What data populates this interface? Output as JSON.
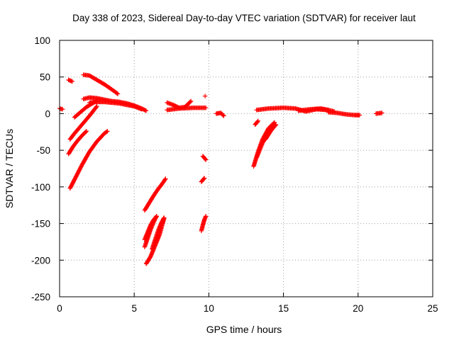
{
  "chart_data": {
    "type": "scatter",
    "title": "Day 338 of 2023, Sidereal Day-to-day VTEC variation (SDTVAR) for receiver laut",
    "xlabel": "GPS time / hours",
    "ylabel": "SDTVAR / TECUs",
    "xlim": [
      0,
      25
    ],
    "ylim": [
      -250,
      100
    ],
    "xticks": [
      "0",
      "5",
      "10",
      "15",
      "20",
      "25"
    ],
    "yticks": [
      "100",
      "50",
      "0",
      "-50",
      "-100",
      "-150",
      "-200",
      "-250"
    ],
    "grid": true,
    "marker": "plus",
    "color": "#ff0000",
    "tracks": [
      {
        "x": [
          0.0,
          0.2
        ],
        "y": [
          7,
          6
        ]
      },
      {
        "x": [
          0.6,
          0.85
        ],
        "y": [
          46,
          44
        ]
      },
      {
        "x": [
          1.6,
          2.0,
          2.5,
          3.0,
          3.5,
          3.9
        ],
        "y": [
          53,
          52,
          46,
          40,
          33,
          27
        ]
      },
      {
        "x": [
          1.6,
          2.0,
          2.5,
          3.0,
          3.5,
          4.0,
          4.5,
          5.0,
          5.5,
          5.8
        ],
        "y": [
          20,
          22,
          21,
          19,
          17,
          16,
          14,
          11,
          7,
          4
        ]
      },
      {
        "x": [
          2.0,
          2.5,
          3.0,
          3.5,
          4.0,
          4.5,
          5.0,
          5.5
        ],
        "y": [
          15,
          16,
          16,
          15,
          14,
          12,
          10,
          6
        ]
      },
      {
        "x": [
          0.7,
          1.0,
          1.5,
          2.0,
          2.5
        ],
        "y": [
          -35,
          -27,
          -15,
          -3,
          10
        ]
      },
      {
        "x": [
          1.0,
          1.4,
          1.8,
          2.2,
          2.5
        ],
        "y": [
          -5,
          2,
          9,
          14,
          18
        ]
      },
      {
        "x": [
          0.6,
          0.9,
          1.2,
          1.5,
          1.8
        ],
        "y": [
          -55,
          -45,
          -37,
          -30,
          -24
        ]
      },
      {
        "x": [
          0.7,
          1.0,
          1.5,
          2.0,
          2.5,
          3.0,
          3.2
        ],
        "y": [
          -102,
          -90,
          -70,
          -52,
          -38,
          -27,
          -24
        ]
      },
      {
        "x": [
          5.7,
          6.0,
          6.3,
          6.6,
          6.9,
          7.1
        ],
        "y": [
          -132,
          -122,
          -112,
          -103,
          -95,
          -89
        ]
      },
      {
        "x": [
          5.7,
          5.9,
          6.1,
          6.3,
          6.5
        ],
        "y": [
          -182,
          -170,
          -158,
          -148,
          -140
        ]
      },
      {
        "x": [
          5.7,
          5.9,
          6.1,
          6.3,
          6.5
        ],
        "y": [
          -172,
          -162,
          -152,
          -145,
          -140
        ]
      },
      {
        "x": [
          5.8,
          6.1,
          6.4,
          6.7,
          6.9,
          7.0
        ],
        "y": [
          -205,
          -195,
          -180,
          -165,
          -150,
          -143
        ]
      },
      {
        "x": [
          6.2,
          6.4,
          6.6,
          6.8,
          7.0
        ],
        "y": [
          -185,
          -172,
          -160,
          -150,
          -142
        ]
      },
      {
        "x": [
          7.2,
          7.6,
          8.0,
          8.4,
          8.8
        ],
        "y": [
          15,
          12,
          8,
          9,
          17
        ]
      },
      {
        "x": [
          7.2,
          8.0,
          9.0,
          9.8
        ],
        "y": [
          5,
          7,
          8,
          8
        ]
      },
      {
        "x": [
          9.6,
          9.8
        ],
        "y": [
          -58,
          -63
        ]
      },
      {
        "x": [
          9.5,
          9.7
        ],
        "y": [
          -93,
          -88
        ]
      },
      {
        "x": [
          9.5,
          9.6,
          9.7,
          9.8
        ],
        "y": [
          -160,
          -152,
          -145,
          -140
        ]
      },
      {
        "x": [
          9.75
        ],
        "y": [
          24
        ]
      },
      {
        "x": [
          10.5,
          10.8,
          11.0
        ],
        "y": [
          0,
          1,
          -3
        ]
      },
      {
        "x": [
          13.1,
          13.3
        ],
        "y": [
          -15,
          -10
        ]
      },
      {
        "x": [
          13.0,
          13.3,
          13.6,
          14.0,
          14.4
        ],
        "y": [
          -72,
          -52,
          -35,
          -20,
          -12
        ]
      },
      {
        "x": [
          13.2,
          13.6,
          14.0,
          14.4
        ],
        "y": [
          -60,
          -40,
          -27,
          -17
        ]
      },
      {
        "x": [
          13.8,
          14.2,
          14.5
        ],
        "y": [
          -35,
          -22,
          -15
        ]
      },
      {
        "x": [
          13.2,
          14.0,
          15.0,
          15.8,
          16.5,
          17.2,
          18.0,
          18.4
        ],
        "y": [
          5,
          7,
          8,
          7,
          3,
          6,
          5,
          3
        ]
      },
      {
        "x": [
          16.0,
          16.8,
          17.5,
          18.0
        ],
        "y": [
          4,
          6,
          7,
          5
        ]
      },
      {
        "x": [
          18.0,
          18.6,
          19.2,
          19.8,
          20.1
        ],
        "y": [
          2,
          1,
          -1,
          -2,
          -2
        ]
      },
      {
        "x": [
          21.2,
          21.6
        ],
        "y": [
          0,
          1
        ]
      }
    ]
  }
}
